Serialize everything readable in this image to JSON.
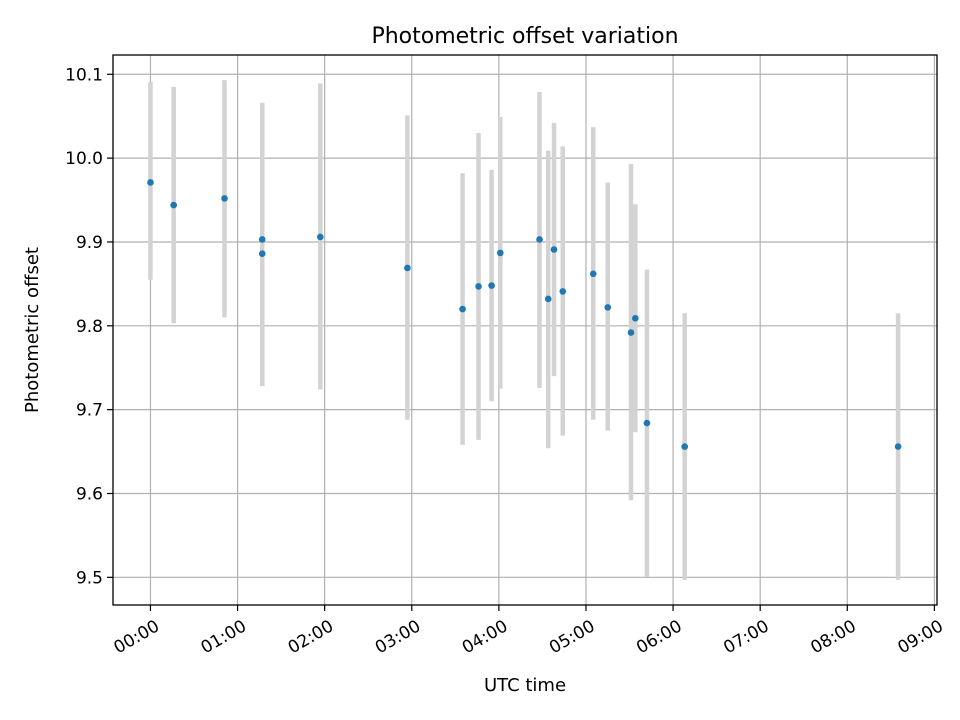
{
  "chart_data": {
    "type": "scatter",
    "title": "Photometric offset variation",
    "xlabel": "UTC time",
    "ylabel": "Photometric offset",
    "x_tick_labels": [
      "00:00",
      "01:00",
      "02:00",
      "03:00",
      "04:00",
      "05:00",
      "06:00",
      "07:00",
      "08:00",
      "09:00"
    ],
    "y_ticks": [
      9.5,
      9.6,
      9.7,
      9.8,
      9.9,
      10.0,
      10.1
    ],
    "y_tick_labels": [
      "9.5",
      "9.6",
      "9.7",
      "9.8",
      "9.9",
      "10.0",
      "10.1"
    ],
    "xlim_hours": [
      -0.43,
      9.03
    ],
    "ylim": [
      9.467,
      10.123
    ],
    "grid": true,
    "point_color": "#1f77b4",
    "errorbar_color": "#d3d3d3",
    "points": [
      {
        "time": "00:00",
        "offset": 9.971,
        "low": 9.855,
        "high": 10.091
      },
      {
        "time": "00:16",
        "offset": 9.944,
        "low": 9.803,
        "high": 10.085
      },
      {
        "time": "00:51",
        "offset": 9.952,
        "low": 9.81,
        "high": 10.093
      },
      {
        "time": "01:17",
        "offset": 9.903,
        "low": 9.74,
        "high": 10.066
      },
      {
        "time": "01:17",
        "offset": 9.886,
        "low": 9.728,
        "high": 10.044
      },
      {
        "time": "01:57",
        "offset": 9.906,
        "low": 9.724,
        "high": 10.089
      },
      {
        "time": "02:57",
        "offset": 9.869,
        "low": 9.688,
        "high": 10.051
      },
      {
        "time": "03:35",
        "offset": 9.82,
        "low": 9.658,
        "high": 9.982
      },
      {
        "time": "03:46",
        "offset": 9.847,
        "low": 9.664,
        "high": 10.03
      },
      {
        "time": "03:55",
        "offset": 9.848,
        "low": 9.71,
        "high": 9.986
      },
      {
        "time": "04:01",
        "offset": 9.887,
        "low": 9.725,
        "high": 10.049
      },
      {
        "time": "04:28",
        "offset": 9.903,
        "low": 9.726,
        "high": 10.079
      },
      {
        "time": "04:34",
        "offset": 9.832,
        "low": 9.654,
        "high": 10.009
      },
      {
        "time": "04:38",
        "offset": 9.891,
        "low": 9.74,
        "high": 10.042
      },
      {
        "time": "04:44",
        "offset": 9.841,
        "low": 9.669,
        "high": 10.014
      },
      {
        "time": "05:05",
        "offset": 9.862,
        "low": 9.688,
        "high": 10.037
      },
      {
        "time": "05:15",
        "offset": 9.822,
        "low": 9.675,
        "high": 9.971
      },
      {
        "time": "05:31",
        "offset": 9.792,
        "low": 9.592,
        "high": 9.993
      },
      {
        "time": "05:34",
        "offset": 9.809,
        "low": 9.673,
        "high": 9.945
      },
      {
        "time": "05:42",
        "offset": 9.684,
        "low": 9.501,
        "high": 9.867
      },
      {
        "time": "06:08",
        "offset": 9.656,
        "low": 9.497,
        "high": 9.815
      },
      {
        "time": "08:35",
        "offset": 9.656,
        "low": 9.497,
        "high": 9.815
      }
    ]
  }
}
